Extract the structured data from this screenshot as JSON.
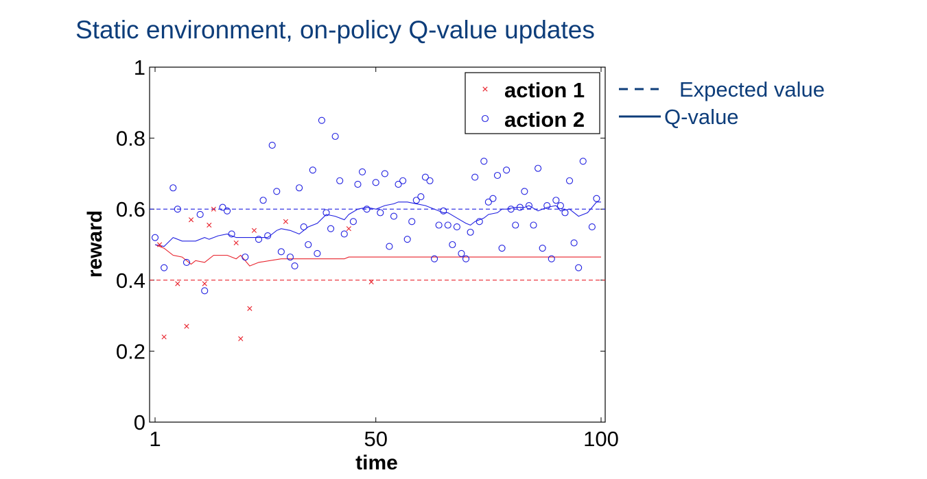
{
  "title": "Static environment, on-policy Q-value updates",
  "chart_data": {
    "type": "scatter",
    "xlabel": "time",
    "ylabel": "reward",
    "xlim": [
      0,
      100
    ],
    "ylim": [
      0,
      1
    ],
    "x_ticks": [
      1,
      50,
      100
    ],
    "x_tick_labels": [
      "1",
      "50",
      "100"
    ],
    "y_ticks": [
      0,
      0.2,
      0.4,
      0.6,
      0.8,
      1
    ],
    "y_tick_labels": [
      "0",
      "0.2",
      "0.4",
      "0.6",
      "0.8",
      "1"
    ],
    "grid": false,
    "legend_position": "top-right",
    "colors": {
      "action1": "#e8202a",
      "action2": "#1f1fe0",
      "annotation": "#0d3d7a"
    },
    "series": [
      {
        "name": "action 1",
        "marker": "x",
        "points": [
          [
            2,
            0.5
          ],
          [
            3,
            0.24
          ],
          [
            6,
            0.39
          ],
          [
            8,
            0.27
          ],
          [
            9,
            0.57
          ],
          [
            12,
            0.39
          ],
          [
            13,
            0.555
          ],
          [
            14,
            0.6
          ],
          [
            19,
            0.505
          ],
          [
            20,
            0.235
          ],
          [
            22,
            0.32
          ],
          [
            23,
            0.54
          ],
          [
            30,
            0.565
          ],
          [
            44,
            0.545
          ],
          [
            49,
            0.395
          ]
        ]
      },
      {
        "name": "action 2",
        "marker": "o",
        "points": [
          [
            1,
            0.52
          ],
          [
            3,
            0.435
          ],
          [
            5,
            0.66
          ],
          [
            6,
            0.6
          ],
          [
            8,
            0.45
          ],
          [
            11,
            0.585
          ],
          [
            12,
            0.37
          ],
          [
            16,
            0.605
          ],
          [
            17,
            0.595
          ],
          [
            18,
            0.53
          ],
          [
            21,
            0.465
          ],
          [
            24,
            0.515
          ],
          [
            25,
            0.625
          ],
          [
            26,
            0.525
          ],
          [
            27,
            0.78
          ],
          [
            28,
            0.65
          ],
          [
            29,
            0.48
          ],
          [
            31,
            0.465
          ],
          [
            32,
            0.44
          ],
          [
            33,
            0.66
          ],
          [
            34,
            0.55
          ],
          [
            35,
            0.5
          ],
          [
            36,
            0.71
          ],
          [
            37,
            0.475
          ],
          [
            38,
            0.85
          ],
          [
            39,
            0.59
          ],
          [
            40,
            0.545
          ],
          [
            41,
            0.805
          ],
          [
            42,
            0.68
          ],
          [
            43,
            0.53
          ],
          [
            45,
            0.565
          ],
          [
            46,
            0.67
          ],
          [
            47,
            0.705
          ],
          [
            48,
            0.6
          ],
          [
            50,
            0.675
          ],
          [
            51,
            0.59
          ],
          [
            52,
            0.7
          ],
          [
            53,
            0.495
          ],
          [
            54,
            0.58
          ],
          [
            55,
            0.67
          ],
          [
            56,
            0.68
          ],
          [
            57,
            0.515
          ],
          [
            58,
            0.565
          ],
          [
            59,
            0.625
          ],
          [
            60,
            0.635
          ],
          [
            61,
            0.69
          ],
          [
            62,
            0.68
          ],
          [
            63,
            0.46
          ],
          [
            64,
            0.555
          ],
          [
            65,
            0.595
          ],
          [
            66,
            0.555
          ],
          [
            67,
            0.5
          ],
          [
            68,
            0.55
          ],
          [
            69,
            0.475
          ],
          [
            70,
            0.46
          ],
          [
            71,
            0.535
          ],
          [
            72,
            0.69
          ],
          [
            73,
            0.565
          ],
          [
            74,
            0.735
          ],
          [
            75,
            0.62
          ],
          [
            76,
            0.63
          ],
          [
            77,
            0.695
          ],
          [
            78,
            0.49
          ],
          [
            79,
            0.71
          ],
          [
            80,
            0.6
          ],
          [
            81,
            0.555
          ],
          [
            82,
            0.605
          ],
          [
            83,
            0.65
          ],
          [
            84,
            0.61
          ],
          [
            85,
            0.555
          ],
          [
            86,
            0.715
          ],
          [
            87,
            0.49
          ],
          [
            88,
            0.61
          ],
          [
            89,
            0.46
          ],
          [
            90,
            0.625
          ],
          [
            91,
            0.61
          ],
          [
            92,
            0.59
          ],
          [
            93,
            0.68
          ],
          [
            94,
            0.505
          ],
          [
            95,
            0.435
          ],
          [
            96,
            0.735
          ],
          [
            98,
            0.55
          ],
          [
            99,
            0.63
          ]
        ]
      }
    ],
    "expected_value": [
      {
        "series": "action 1",
        "value": 0.4
      },
      {
        "series": "action 2",
        "value": 0.6
      }
    ],
    "q_value": [
      {
        "series": "action 1",
        "points": [
          [
            1,
            0.5
          ],
          [
            3,
            0.49
          ],
          [
            5,
            0.47
          ],
          [
            7,
            0.465
          ],
          [
            9,
            0.445
          ],
          [
            10,
            0.455
          ],
          [
            12,
            0.45
          ],
          [
            14,
            0.47
          ],
          [
            17,
            0.47
          ],
          [
            19,
            0.46
          ],
          [
            20,
            0.47
          ],
          [
            21,
            0.455
          ],
          [
            22,
            0.44
          ],
          [
            24,
            0.45
          ],
          [
            29,
            0.46
          ],
          [
            43,
            0.46
          ],
          [
            44,
            0.465
          ],
          [
            49,
            0.465
          ],
          [
            100,
            0.465
          ]
        ]
      },
      {
        "series": "action 2",
        "points": [
          [
            1,
            0.5
          ],
          [
            3,
            0.495
          ],
          [
            5,
            0.52
          ],
          [
            7,
            0.51
          ],
          [
            10,
            0.51
          ],
          [
            12,
            0.52
          ],
          [
            13,
            0.515
          ],
          [
            15,
            0.525
          ],
          [
            17,
            0.53
          ],
          [
            19,
            0.52
          ],
          [
            23,
            0.52
          ],
          [
            26,
            0.52
          ],
          [
            27,
            0.53
          ],
          [
            28,
            0.54
          ],
          [
            29,
            0.545
          ],
          [
            31,
            0.54
          ],
          [
            33,
            0.53
          ],
          [
            35,
            0.55
          ],
          [
            37,
            0.56
          ],
          [
            39,
            0.585
          ],
          [
            41,
            0.58
          ],
          [
            43,
            0.57
          ],
          [
            44,
            0.585
          ],
          [
            46,
            0.6
          ],
          [
            48,
            0.605
          ],
          [
            50,
            0.6
          ],
          [
            52,
            0.61
          ],
          [
            54,
            0.615
          ],
          [
            55,
            0.62
          ],
          [
            57,
            0.62
          ],
          [
            59,
            0.615
          ],
          [
            61,
            0.61
          ],
          [
            63,
            0.6
          ],
          [
            65,
            0.59
          ],
          [
            66,
            0.59
          ],
          [
            68,
            0.575
          ],
          [
            70,
            0.56
          ],
          [
            71,
            0.555
          ],
          [
            72,
            0.565
          ],
          [
            74,
            0.575
          ],
          [
            75,
            0.585
          ],
          [
            77,
            0.59
          ],
          [
            78,
            0.6
          ],
          [
            79,
            0.6
          ],
          [
            81,
            0.605
          ],
          [
            83,
            0.605
          ],
          [
            84,
            0.61
          ],
          [
            86,
            0.595
          ],
          [
            88,
            0.605
          ],
          [
            90,
            0.61
          ],
          [
            91,
            0.595
          ],
          [
            93,
            0.6
          ],
          [
            95,
            0.58
          ],
          [
            97,
            0.59
          ],
          [
            98,
            0.605
          ],
          [
            99,
            0.62
          ],
          [
            100,
            0.62
          ]
        ]
      }
    ],
    "legend": {
      "entries": [
        "action 1",
        "action 2"
      ],
      "line_entries": [
        "Expected value",
        "Q-value"
      ]
    }
  }
}
